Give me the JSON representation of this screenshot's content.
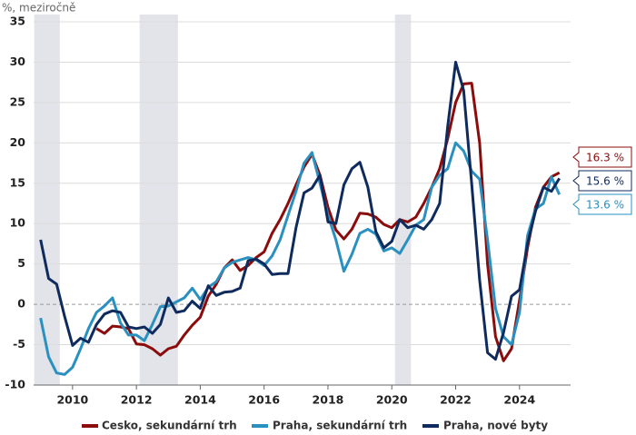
{
  "chart_data": {
    "type": "line",
    "y_label": "%, meziročně",
    "x": [
      2009,
      2009.25,
      2009.5,
      2009.75,
      2010,
      2010.25,
      2010.5,
      2010.75,
      2011,
      2011.25,
      2011.5,
      2011.75,
      2012,
      2012.25,
      2012.5,
      2012.75,
      2013,
      2013.25,
      2013.5,
      2013.75,
      2014,
      2014.25,
      2014.5,
      2014.75,
      2015,
      2015.25,
      2015.5,
      2015.75,
      2016,
      2016.25,
      2016.5,
      2016.75,
      2017,
      2017.25,
      2017.5,
      2017.75,
      2018,
      2018.25,
      2018.5,
      2018.75,
      2019,
      2019.25,
      2019.5,
      2019.75,
      2020,
      2020.25,
      2020.5,
      2020.75,
      2021,
      2021.25,
      2021.5,
      2021.75,
      2022,
      2022.25,
      2022.5,
      2022.75,
      2023,
      2023.25,
      2023.5,
      2023.75,
      2024,
      2024.25,
      2024.5,
      2024.75,
      2025,
      2025.25
    ],
    "series": [
      {
        "name": "Cesko, sekundární trh",
        "color": "#8b0c0c",
        "values": [
          null,
          null,
          null,
          null,
          null,
          null,
          null,
          -3.0,
          -3.6,
          -2.7,
          -2.8,
          -3.0,
          -4.9,
          -5.0,
          -5.5,
          -6.3,
          -5.5,
          -5.2,
          -3.8,
          -2.6,
          -1.6,
          1.0,
          2.5,
          4.5,
          5.5,
          4.2,
          4.8,
          5.8,
          6.5,
          8.8,
          10.5,
          12.5,
          14.8,
          17.0,
          18.6,
          16.0,
          12.0,
          9.2,
          8.1,
          9.3,
          11.3,
          11.2,
          10.8,
          9.9,
          9.5,
          10.5,
          10.2,
          10.8,
          12.5,
          14.5,
          16.8,
          20.5,
          25.0,
          27.3,
          27.4,
          20.0,
          5.0,
          -4.0,
          -7.0,
          -5.5,
          0.5,
          7.0,
          12.0,
          14.5,
          15.8,
          16.3
        ],
        "value_labels": [
          null,
          null,
          null,
          null,
          null,
          null,
          null,
          null,
          null,
          null,
          null,
          null,
          null,
          null,
          null,
          null,
          null,
          null,
          null,
          null,
          null,
          null,
          null,
          null,
          null,
          null,
          null,
          null,
          null,
          null,
          null,
          null,
          null,
          null,
          null,
          null,
          null,
          null,
          null,
          null,
          null,
          null,
          null,
          null,
          null,
          null,
          null,
          null,
          null,
          null,
          null,
          null,
          null,
          null,
          null,
          null,
          null,
          null,
          null,
          null,
          null,
          null,
          null,
          null,
          null,
          "16.3 %"
        ]
      },
      {
        "name": "Praha, sekundární trh",
        "color": "#2a90c0",
        "values": [
          -1.7,
          -6.5,
          -8.5,
          -8.7,
          -7.8,
          -5.5,
          -3.0,
          -1.0,
          -0.2,
          0.8,
          -2.3,
          -3.8,
          -3.8,
          -4.5,
          -2.5,
          -0.3,
          -0.2,
          0.3,
          0.8,
          2.0,
          0.6,
          2.1,
          2.8,
          4.5,
          5.2,
          5.5,
          5.8,
          5.5,
          4.8,
          6.0,
          8.0,
          11.0,
          14.0,
          17.5,
          18.8,
          15.0,
          11.0,
          8.0,
          4.1,
          6.2,
          8.8,
          9.3,
          8.7,
          6.6,
          7.0,
          6.3,
          8.0,
          9.8,
          10.5,
          14.5,
          16.0,
          16.8,
          20.0,
          19.0,
          16.5,
          15.5,
          8.0,
          -0.5,
          -4.0,
          -5.0,
          -1.0,
          8.5,
          11.8,
          12.5,
          15.8,
          13.6
        ],
        "value_labels": [
          null,
          null,
          null,
          null,
          null,
          null,
          null,
          null,
          null,
          null,
          null,
          null,
          null,
          null,
          null,
          null,
          null,
          null,
          null,
          null,
          null,
          null,
          null,
          null,
          null,
          null,
          null,
          null,
          null,
          null,
          null,
          null,
          null,
          null,
          null,
          null,
          null,
          null,
          null,
          null,
          null,
          null,
          null,
          null,
          null,
          null,
          null,
          null,
          null,
          null,
          null,
          null,
          null,
          null,
          null,
          null,
          null,
          null,
          null,
          null,
          null,
          null,
          null,
          null,
          null,
          "13.6 %"
        ]
      },
      {
        "name": "Praha, nové byty",
        "color": "#0f2b5e",
        "values": [
          8.0,
          3.2,
          2.5,
          -1.5,
          -5.1,
          -4.2,
          -4.7,
          -2.5,
          -1.2,
          -0.8,
          -1.0,
          -2.8,
          -3.0,
          -2.8,
          -3.6,
          -2.5,
          0.8,
          -1.0,
          -0.8,
          0.4,
          -0.5,
          2.3,
          1.1,
          1.5,
          1.6,
          2.0,
          5.4,
          5.6,
          5.0,
          3.7,
          3.8,
          3.8,
          9.5,
          13.8,
          14.4,
          16.0,
          10.2,
          10.0,
          14.8,
          16.8,
          17.6,
          14.5,
          9.0,
          7.0,
          7.8,
          10.5,
          9.5,
          9.8,
          9.3,
          10.5,
          12.5,
          22.0,
          30.0,
          26.5,
          15.0,
          3.0,
          -6.0,
          -6.8,
          -3.5,
          1.0,
          1.8,
          7.5,
          11.5,
          14.5,
          14.0,
          15.6
        ],
        "value_labels": [
          null,
          null,
          null,
          null,
          null,
          null,
          null,
          null,
          null,
          null,
          null,
          null,
          null,
          null,
          null,
          null,
          null,
          null,
          null,
          null,
          null,
          null,
          null,
          null,
          null,
          null,
          null,
          null,
          null,
          null,
          null,
          null,
          null,
          null,
          null,
          null,
          null,
          null,
          null,
          null,
          null,
          null,
          null,
          null,
          null,
          null,
          null,
          null,
          null,
          null,
          null,
          null,
          null,
          null,
          null,
          null,
          null,
          null,
          null,
          null,
          null,
          null,
          null,
          null,
          null,
          "15.6 %"
        ]
      }
    ],
    "shaded": [
      [
        2008.8,
        2009.6
      ],
      [
        2012.1,
        2013.3
      ],
      [
        2020.1,
        2020.6
      ]
    ],
    "xlim": [
      2008.78,
      2025.6
    ],
    "xticks": [
      2010,
      2012,
      2014,
      2016,
      2018,
      2020,
      2022,
      2024
    ],
    "ylim": [
      -10,
      35
    ],
    "yticks": [
      -10,
      -5,
      0,
      5,
      10,
      15,
      20,
      25,
      30,
      35
    ],
    "grid": true,
    "legend": "bottom"
  }
}
